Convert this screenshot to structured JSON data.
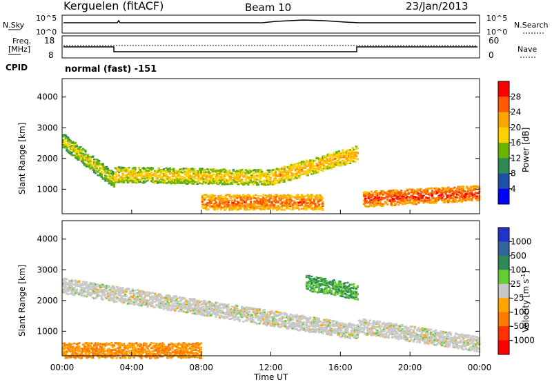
{
  "header": {
    "station": "Kerguelen (fitACF)",
    "beam": "Beam 10",
    "date": "23/Jan/2013"
  },
  "panels": {
    "nsky": {
      "left_label": "N.Sky",
      "right_label": "N.Search",
      "left_ticks": [
        "10^5",
        "10^0"
      ],
      "right_ticks": [
        "10^5",
        "10^0"
      ]
    },
    "freq": {
      "left_label_1": "Freq.",
      "left_label_2": "[MHz]",
      "right_label": "Nave",
      "left_ticks": [
        "18",
        "8"
      ],
      "right_ticks": [
        "60",
        "0"
      ]
    },
    "cpid": {
      "label": "CPID",
      "value": "normal (fast) -151"
    }
  },
  "power_colorbar": {
    "title": "Power [dB]",
    "ticks": [
      "28",
      "24",
      "20",
      "16",
      "12",
      "8",
      "4"
    ],
    "colors": [
      "#ff0000",
      "#ff5a00",
      "#ffa500",
      "#ffd000",
      "#6ab400",
      "#2e8b57",
      "#1f4fa8",
      "#0000ff"
    ]
  },
  "velocity_colorbar": {
    "title": "Velocity [m s",
    "title_exp": "-1",
    "title_end": "]",
    "ticks": [
      "1000",
      "500",
      "100",
      "25",
      "-25",
      "-100",
      "-500",
      "-1000"
    ],
    "colors": [
      "#2233cc",
      "#336699",
      "#2e8b57",
      "#66cc33",
      "#c8c8c8",
      "#ffa500",
      "#ff7a00",
      "#ff3300",
      "#ff0000"
    ]
  },
  "chart_data": [
    {
      "type": "heatmap",
      "panel": "power",
      "ylabel": "Slant Range [km]",
      "xlim": [
        "00:00",
        "00:00"
      ],
      "ylim": [
        200,
        4600
      ],
      "yticks": [
        "4000",
        "3000",
        "2000",
        "1000"
      ],
      "scale_unit": "dB",
      "features": [
        {
          "t_start_h": 0.0,
          "t_end_h": 3.0,
          "range_start_km": 2600,
          "range_end_km": 1300,
          "power_db": 18
        },
        {
          "t_start_h": 3.0,
          "t_end_h": 12.0,
          "range_start_km": 1500,
          "range_end_km": 1400,
          "power_db": 20
        },
        {
          "t_start_h": 12.0,
          "t_end_h": 17.0,
          "range_start_km": 1400,
          "range_end_km": 2200,
          "power_db": 22
        },
        {
          "t_start_h": 8.0,
          "t_end_h": 15.0,
          "range_start_km": 600,
          "range_end_km": 600,
          "power_db": 26
        },
        {
          "t_start_h": 17.3,
          "t_end_h": 24.0,
          "range_start_km": 700,
          "range_end_km": 900,
          "power_db": 28
        }
      ]
    },
    {
      "type": "heatmap",
      "panel": "velocity",
      "ylabel": "Slant Range [km]",
      "xlabel": "Time UT",
      "xlim": [
        "00:00",
        "00:00"
      ],
      "ylim": [
        200,
        4600
      ],
      "yticks": [
        "4000",
        "3000",
        "2000",
        "1000"
      ],
      "xticks": [
        "00:00",
        "04:00",
        "08:00",
        "12:00",
        "16:00",
        "20:00",
        "00:00"
      ],
      "scale_unit": "m s-1",
      "features": [
        {
          "t_start_h": 0.0,
          "t_end_h": 17.0,
          "range_start_km": 2500,
          "range_end_km": 1000,
          "velocity_ms": 0
        },
        {
          "t_start_h": 0.0,
          "t_end_h": 8.0,
          "range_start_km": 400,
          "range_end_km": 400,
          "velocity_ms": -100
        },
        {
          "t_start_h": 17.0,
          "t_end_h": 24.0,
          "range_start_km": 1200,
          "range_end_km": 600,
          "velocity_ms": 0
        },
        {
          "t_start_h": 14.0,
          "t_end_h": 17.0,
          "range_start_km": 2600,
          "range_end_km": 2300,
          "velocity_ms": 100
        }
      ]
    }
  ]
}
